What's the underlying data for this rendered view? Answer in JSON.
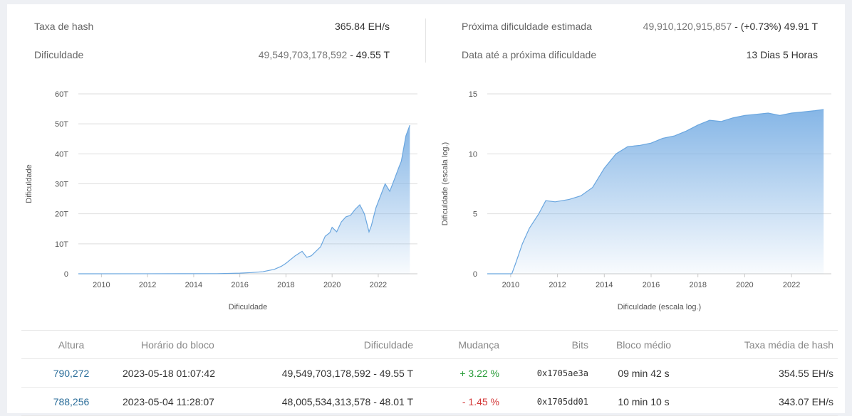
{
  "stats": {
    "hashrate": {
      "label": "Taxa de hash",
      "value": "365.84 EH/s"
    },
    "difficulty": {
      "label": "Dificuldade",
      "value_main": "49,549,703,178,592",
      "value_suffix": " - 49.55 T"
    },
    "next_difficulty": {
      "label": "Próxima dificuldade estimada",
      "value_main": "49,910,120,915,857",
      "value_suffix": " - (+0.73%) 49.91 T"
    },
    "next_date": {
      "label": "Data até a próxima dificuldade",
      "value": "13 Dias 5 Horas"
    }
  },
  "chart_data": [
    {
      "type": "area",
      "title": "",
      "xlabel": "Dificuldade",
      "ylabel": "Dificuldade",
      "y_ticks": [
        "0",
        "10T",
        "20T",
        "30T",
        "40T",
        "50T",
        "60T"
      ],
      "x_ticks": [
        "2010",
        "2012",
        "2014",
        "2016",
        "2018",
        "2020",
        "2022"
      ],
      "xlim": [
        2009.0,
        2023.7
      ],
      "ylim": [
        0,
        60
      ],
      "grid": true,
      "x": [
        2009.0,
        2012.0,
        2015.0,
        2016.0,
        2016.5,
        2017.0,
        2017.5,
        2017.8,
        2018.0,
        2018.4,
        2018.7,
        2018.9,
        2019.1,
        2019.5,
        2019.7,
        2019.9,
        2020.0,
        2020.2,
        2020.4,
        2020.6,
        2020.8,
        2021.0,
        2021.2,
        2021.4,
        2021.6,
        2021.7,
        2021.9,
        2022.1,
        2022.3,
        2022.5,
        2022.7,
        2022.9,
        2023.0,
        2023.2,
        2023.37
      ],
      "y": [
        0,
        0.01,
        0.05,
        0.2,
        0.4,
        0.7,
        1.5,
        2.5,
        3.5,
        6.0,
        7.5,
        5.5,
        6.0,
        9.0,
        12.5,
        13.7,
        15.5,
        14.0,
        17.3,
        19.0,
        19.5,
        21.5,
        23.0,
        20.0,
        14.0,
        16.0,
        22.0,
        26.0,
        30.0,
        27.5,
        31.5,
        35.6,
        37.5,
        46.0,
        49.55
      ],
      "series_color": "#7fb2e5"
    },
    {
      "type": "area",
      "title": "",
      "xlabel": "Dificuldade (escala log.)",
      "ylabel": "Dificuldade (escala log.)",
      "y_ticks": [
        "0",
        "5",
        "10",
        "15"
      ],
      "x_ticks": [
        "2010",
        "2012",
        "2014",
        "2016",
        "2018",
        "2020",
        "2022"
      ],
      "xlim": [
        2009.0,
        2023.7
      ],
      "ylim": [
        0,
        15
      ],
      "log_scale": true,
      "grid": true,
      "x": [
        2009.0,
        2010.05,
        2010.2,
        2010.5,
        2010.8,
        2011.2,
        2011.5,
        2011.9,
        2012.5,
        2013.0,
        2013.5,
        2014.0,
        2014.5,
        2015.0,
        2015.5,
        2016.0,
        2016.5,
        2017.0,
        2017.5,
        2018.0,
        2018.5,
        2019.0,
        2019.5,
        2020.0,
        2020.5,
        2021.0,
        2021.5,
        2022.0,
        2022.5,
        2023.0,
        2023.37
      ],
      "y": [
        0,
        0,
        0.8,
        2.5,
        3.8,
        5.0,
        6.1,
        6.0,
        6.2,
        6.5,
        7.2,
        8.8,
        10.0,
        10.6,
        10.7,
        10.9,
        11.3,
        11.5,
        11.9,
        12.4,
        12.8,
        12.7,
        13.0,
        13.2,
        13.3,
        13.4,
        13.2,
        13.4,
        13.5,
        13.6,
        13.7
      ],
      "series_color": "#7fb2e5"
    }
  ],
  "table": {
    "headers": [
      "Altura",
      "Horário do bloco",
      "Dificuldade",
      "Mudança",
      "Bits",
      "Bloco médio",
      "Taxa média de hash"
    ],
    "rows": [
      [
        "790,272",
        "2023-05-18 01:07:42",
        "49,549,703,178,592 - 49.55 T",
        "+ 3.22 %",
        "0x1705ae3a",
        "09 min 42 s",
        "354.55 EH/s"
      ],
      [
        "788,256",
        "2023-05-04 11:28:07",
        "48,005,534,313,578 - 48.01 T",
        "- 1.45 %",
        "0x1705dd01",
        "10 min 10 s",
        "343.07 EH/s"
      ]
    ]
  }
}
